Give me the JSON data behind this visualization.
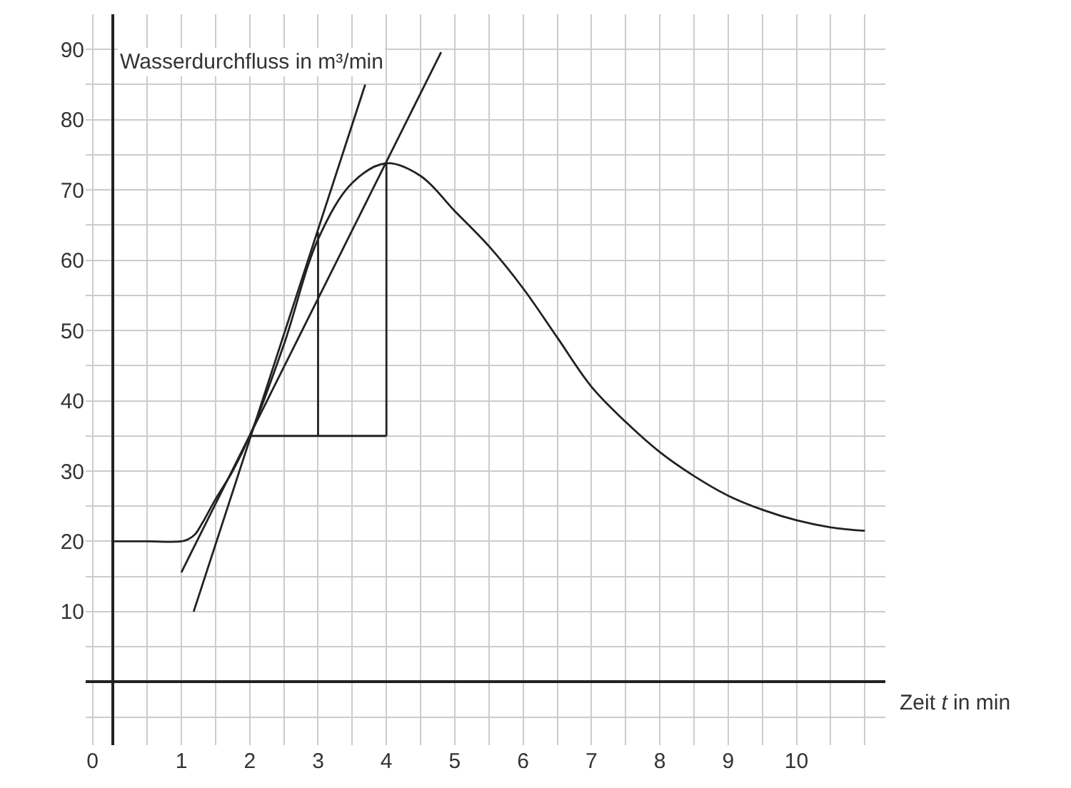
{
  "chart_data": {
    "type": "line",
    "xlabel": "Zeit t in min",
    "annotations": [
      "Wasserdurchfluss in m³/min"
    ],
    "xlim": [
      -0.4,
      11.3
    ],
    "ylim": [
      -9,
      95
    ],
    "xticks": [
      {
        "value": -0.3,
        "label": "0"
      },
      1,
      2,
      3,
      4,
      5,
      6,
      7,
      8,
      9,
      10
    ],
    "yticks": [
      10,
      20,
      30,
      40,
      50,
      60,
      70,
      80,
      90
    ],
    "grid": true,
    "marker": "none",
    "line_style": "solid",
    "series": [
      {
        "color": "#222222",
        "x": [
          0,
          0.5,
          1,
          1.1,
          1.2,
          1.3,
          1.5,
          1.75,
          2,
          2.5,
          3,
          3.5,
          4,
          4.5,
          5,
          5.5,
          6,
          6.5,
          7,
          7.5,
          8,
          8.5,
          9,
          9.5,
          10,
          10.5,
          11
        ],
        "values": [
          20,
          20,
          20,
          20.3,
          21,
          22.5,
          26,
          30,
          35,
          48,
          63,
          71,
          73.8,
          72,
          67,
          62,
          56,
          49,
          42,
          37,
          32.7,
          29.3,
          26.5,
          24.5,
          23,
          22,
          21.5
        ]
      },
      {
        "color": "#222222",
        "x": [
          1.18,
          3.69
        ],
        "values": [
          10,
          85
        ]
      },
      {
        "color": "#222222",
        "x": [
          1.0,
          4.8
        ],
        "values": [
          15.6,
          89.6
        ]
      },
      {
        "color": "#222222",
        "x": [
          2,
          4
        ],
        "values": [
          35,
          35
        ]
      },
      {
        "color": "#222222",
        "x": [
          3,
          3
        ],
        "values": [
          35,
          64
        ]
      },
      {
        "color": "#222222",
        "x": [
          4,
          4
        ],
        "values": [
          35,
          73.8
        ]
      }
    ]
  }
}
